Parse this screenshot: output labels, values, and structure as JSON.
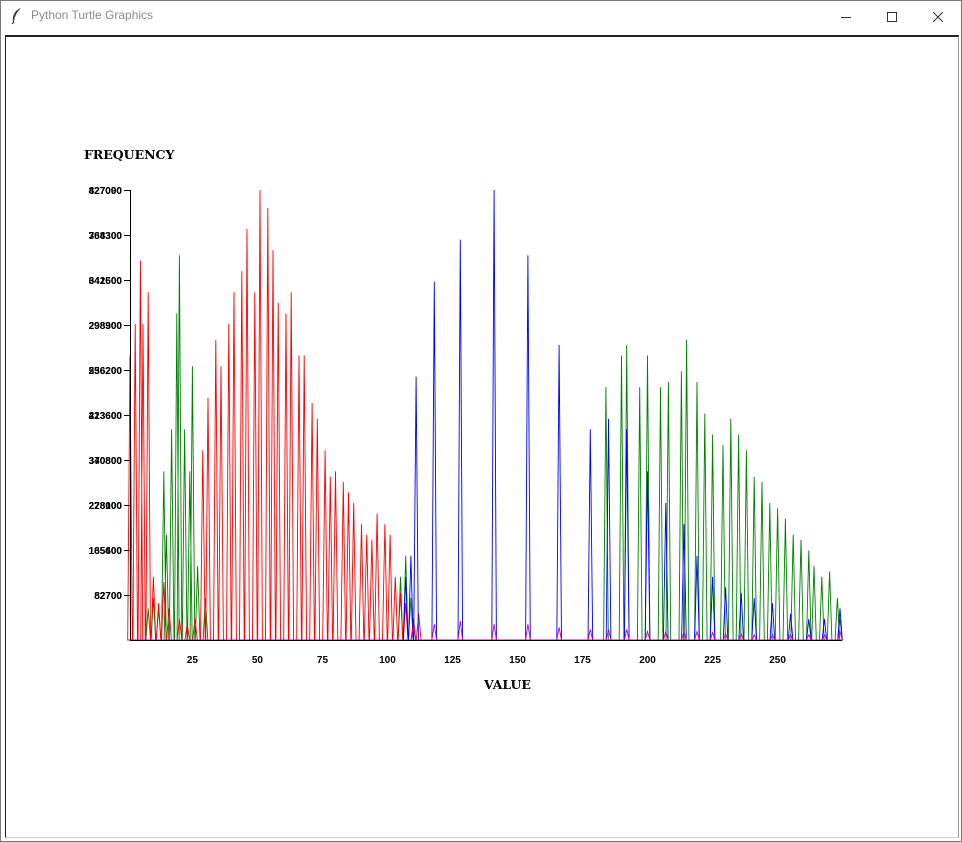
{
  "window": {
    "title": "Python Turtle Graphics",
    "controls": [
      "minimize-icon",
      "maximize-icon",
      "close-icon"
    ]
  },
  "chart_data": {
    "type": "line",
    "ylabel": "FREQUENCY",
    "xlabel": "VALUE",
    "title": "",
    "xlim": [
      1,
      274
    ],
    "ylim": [
      0,
      427090
    ],
    "x_ticks": [
      25,
      50,
      75,
      100,
      125,
      150,
      175,
      200,
      225,
      250
    ],
    "y_tick_labels": [
      [
        "82700",
        "82700"
      ],
      [
        "165400",
        "185600"
      ],
      [
        "228000",
        "278100"
      ],
      [
        "340800",
        "370800"
      ],
      [
        "213600",
        "423600"
      ],
      [
        "256200",
        "536200"
      ],
      [
        "298900",
        "298300"
      ],
      [
        "341600",
        "642500"
      ],
      [
        "384300",
        "768300"
      ],
      [
        "427090",
        "827000"
      ]
    ],
    "series_colors": {
      "red": "#ff0000",
      "green": "#008000",
      "blue": "#0000ff"
    },
    "red_peaks": [
      [
        1,
        270000
      ],
      [
        3,
        300000
      ],
      [
        5,
        360000
      ],
      [
        6,
        300000
      ],
      [
        8,
        330000
      ],
      [
        10,
        60000
      ],
      [
        12,
        35000
      ],
      [
        14,
        55000
      ],
      [
        16,
        30000
      ],
      [
        20,
        20000
      ],
      [
        23,
        15000
      ],
      [
        26,
        20000
      ],
      [
        29,
        180000
      ],
      [
        31,
        230000
      ],
      [
        34,
        285000
      ],
      [
        36,
        260000
      ],
      [
        39,
        300000
      ],
      [
        41,
        330000
      ],
      [
        44,
        350000
      ],
      [
        46,
        390000
      ],
      [
        49,
        330000
      ],
      [
        51,
        427090
      ],
      [
        54,
        410000
      ],
      [
        56,
        370000
      ],
      [
        58,
        320000
      ],
      [
        61,
        310000
      ],
      [
        63,
        330000
      ],
      [
        66,
        270000
      ],
      [
        68,
        270000
      ],
      [
        71,
        225000
      ],
      [
        73,
        210000
      ],
      [
        76,
        180000
      ],
      [
        78,
        155000
      ],
      [
        80,
        160000
      ],
      [
        83,
        150000
      ],
      [
        85,
        140000
      ],
      [
        87,
        130000
      ],
      [
        90,
        110000
      ],
      [
        92,
        100000
      ],
      [
        94,
        95000
      ],
      [
        96,
        120000
      ],
      [
        99,
        110000
      ],
      [
        101,
        100000
      ],
      [
        103,
        60000
      ],
      [
        105,
        45000
      ],
      [
        107,
        35000
      ],
      [
        110,
        20000
      ],
      [
        112,
        25000
      ]
    ],
    "green_peaks": [
      [
        8,
        30000
      ],
      [
        10,
        40000
      ],
      [
        12,
        30000
      ],
      [
        14,
        160000
      ],
      [
        15,
        100000
      ],
      [
        17,
        200000
      ],
      [
        19,
        310000
      ],
      [
        20,
        365000
      ],
      [
        22,
        200000
      ],
      [
        24,
        160000
      ],
      [
        25,
        260000
      ],
      [
        27,
        70000
      ],
      [
        30,
        40000
      ],
      [
        105,
        60000
      ],
      [
        107,
        80000
      ],
      [
        109,
        40000
      ],
      [
        184,
        240000
      ],
      [
        190,
        270000
      ],
      [
        192,
        280000
      ],
      [
        197,
        240000
      ],
      [
        200,
        270000
      ],
      [
        205,
        240000
      ],
      [
        208,
        245000
      ],
      [
        213,
        255000
      ],
      [
        215,
        285000
      ],
      [
        219,
        245000
      ],
      [
        222,
        215000
      ],
      [
        225,
        195000
      ],
      [
        229,
        185000
      ],
      [
        232,
        210000
      ],
      [
        235,
        195000
      ],
      [
        238,
        180000
      ],
      [
        241,
        155000
      ],
      [
        244,
        150000
      ],
      [
        247,
        130000
      ],
      [
        250,
        125000
      ],
      [
        253,
        115000
      ],
      [
        256,
        100000
      ],
      [
        259,
        95000
      ],
      [
        262,
        85000
      ],
      [
        264,
        70000
      ],
      [
        267,
        60000
      ],
      [
        270,
        65000
      ],
      [
        273,
        40000
      ],
      [
        274,
        20000
      ]
    ],
    "blue_peaks": [
      [
        107,
        60000
      ],
      [
        109,
        80000
      ],
      [
        111,
        250000
      ],
      [
        118,
        340000
      ],
      [
        128,
        380000
      ],
      [
        141,
        427090
      ],
      [
        154,
        365000
      ],
      [
        166,
        280000
      ],
      [
        178,
        200000
      ],
      [
        185,
        210000
      ],
      [
        192,
        200000
      ],
      [
        200,
        160000
      ],
      [
        207,
        130000
      ],
      [
        214,
        110000
      ],
      [
        219,
        80000
      ],
      [
        225,
        60000
      ],
      [
        230,
        50000
      ],
      [
        236,
        45000
      ],
      [
        241,
        40000
      ],
      [
        248,
        35000
      ],
      [
        255,
        25000
      ],
      [
        262,
        20000
      ],
      [
        268,
        20000
      ],
      [
        274,
        30000
      ]
    ],
    "magenta_peaks": [
      [
        110,
        12000
      ],
      [
        118,
        15000
      ],
      [
        128,
        18000
      ],
      [
        141,
        15000
      ],
      [
        154,
        15000
      ],
      [
        166,
        12000
      ],
      [
        178,
        10000
      ],
      [
        185,
        10000
      ],
      [
        192,
        10000
      ],
      [
        200,
        8000
      ],
      [
        207,
        8000
      ],
      [
        214,
        8000
      ],
      [
        219,
        8000
      ],
      [
        225,
        7000
      ],
      [
        230,
        6000
      ],
      [
        236,
        6000
      ],
      [
        241,
        5000
      ],
      [
        248,
        5000
      ],
      [
        255,
        5000
      ],
      [
        262,
        5000
      ],
      [
        268,
        5000
      ],
      [
        274,
        8000
      ]
    ]
  }
}
